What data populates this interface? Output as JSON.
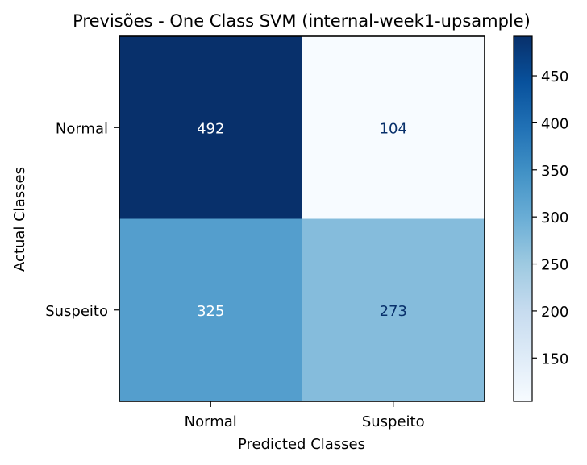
{
  "chart_data": {
    "type": "heatmap",
    "title": "Previsões - One Class SVM (internal-week1-upsample)",
    "xlabel": "Predicted Classes",
    "ylabel": "Actual Classes",
    "x_categories": [
      "Normal",
      "Suspeito"
    ],
    "y_categories": [
      "Normal",
      "Suspeito"
    ],
    "values": [
      [
        492,
        104
      ],
      [
        325,
        273
      ]
    ],
    "colormap": "Blues",
    "color_range": [
      104,
      492
    ],
    "colorbar_ticks": [
      "150",
      "200",
      "250",
      "300",
      "350",
      "400",
      "450"
    ],
    "colorbar_tick_values": [
      150,
      200,
      250,
      300,
      350,
      400,
      450
    ]
  }
}
